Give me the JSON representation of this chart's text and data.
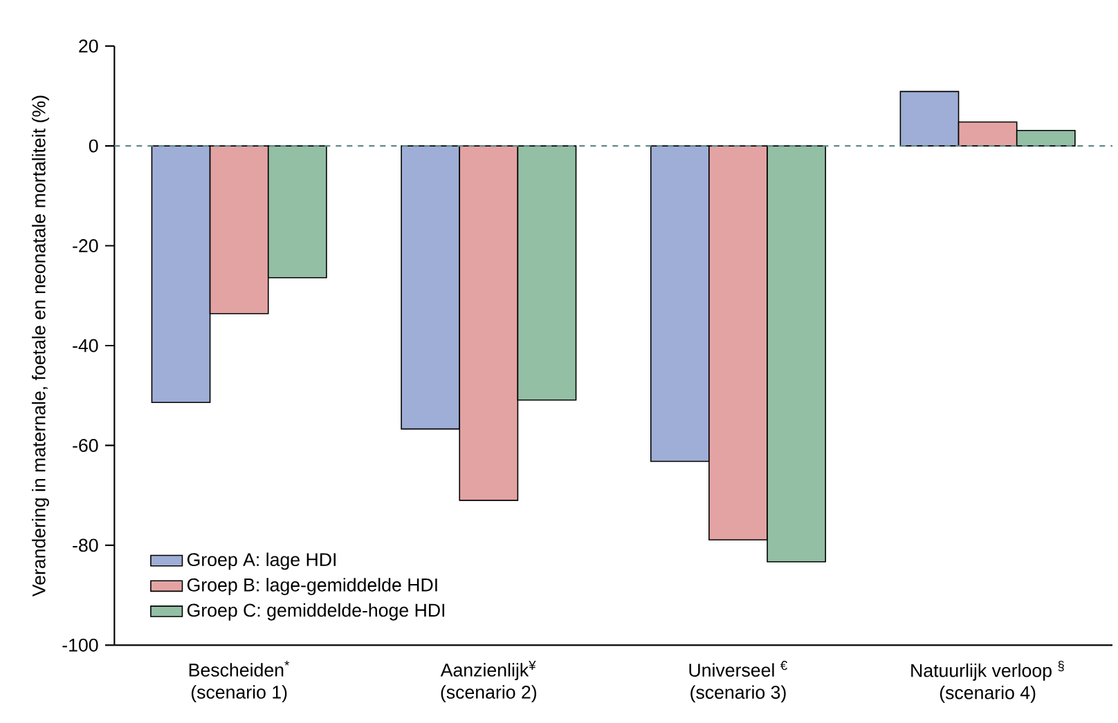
{
  "chart_data": {
    "type": "bar",
    "ylabel": "Verandering in maternale, foetale en neonatale mortaliteit (%)",
    "categories": [
      "Bescheiden$^{*}$\n(scenario 1)",
      "Aanzienlijk$^{¥}$\n(scenario 2)",
      "Universeel $^{€}$\n(scenario 3)",
      "Natuurlijk verloop $^{§}$\n(scenario 4)"
    ],
    "series": [
      {
        "name": "Groep A: lage HDI",
        "color": "#9faed6",
        "values": [
          -51.4,
          -56.7,
          -63.2,
          10.9
        ]
      },
      {
        "name": "Groep B: lage-gemiddelde HDI",
        "color": "#e3a3a2",
        "values": [
          -33.6,
          -71,
          -78.9,
          4.8
        ]
      },
      {
        "name": "Groep C: gemiddelde-hoge HDI",
        "color": "#93bfa5",
        "values": [
          -26.4,
          -50.9,
          -83.3,
          3.1
        ]
      }
    ],
    "ylim": [
      -100,
      20
    ],
    "yticks": [
      -100,
      -80,
      -60,
      -40,
      -20,
      0,
      20
    ],
    "ref_lines": [
      {
        "axis": "y",
        "value": 0,
        "color": "#5f8a8a",
        "line_style": "dashed"
      }
    ],
    "legend": "bottom left"
  }
}
